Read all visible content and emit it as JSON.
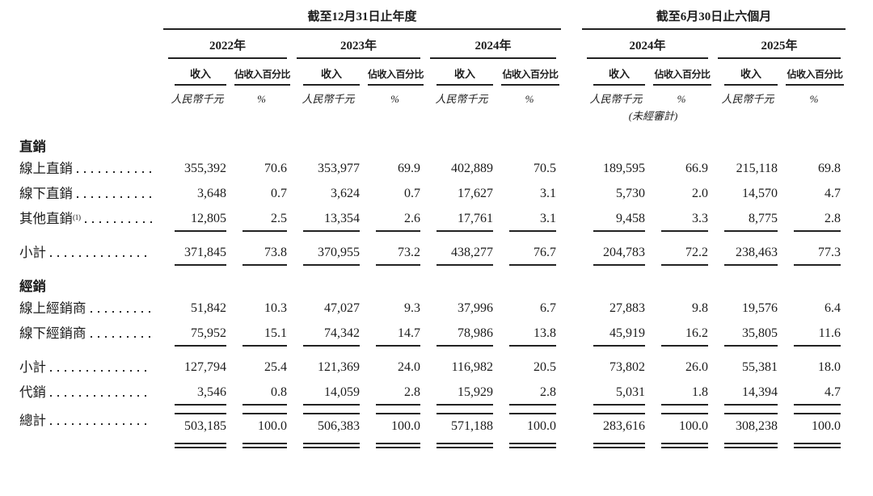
{
  "page": {
    "background": "#ffffff",
    "text_color": "#1c1c1c",
    "rule_color": "#222222"
  },
  "table": {
    "header": {
      "period_groups": [
        {
          "title": "截至12月31日止年度",
          "years": [
            {
              "label": "2022年"
            },
            {
              "label": "2023年"
            },
            {
              "label": "2024年"
            }
          ]
        },
        {
          "title": "截至6月30日止六個月",
          "years": [
            {
              "label": "2024年",
              "note": "(未經審計)"
            },
            {
              "label": "2025年"
            }
          ]
        }
      ],
      "revenue_col_label": "收入",
      "pct_col_label": "佔收入百分比",
      "revenue_unit": "人民幣千元",
      "pct_unit": "%",
      "unaudited_note": "(未經審計)"
    },
    "rows": [
      {
        "type": "section",
        "label": "直銷"
      },
      {
        "type": "data",
        "label": "線上直銷",
        "values": [
          "355,392",
          "70.6",
          "353,977",
          "69.9",
          "402,889",
          "70.5",
          "189,595",
          "66.9",
          "215,118",
          "69.8"
        ]
      },
      {
        "type": "data",
        "label": "線下直銷",
        "values": [
          "3,648",
          "0.7",
          "3,624",
          "0.7",
          "17,627",
          "3.1",
          "5,730",
          "2.0",
          "14,570",
          "4.7"
        ]
      },
      {
        "type": "data",
        "label": "其他直銷",
        "footnote": "(1)",
        "rule_below": true,
        "values": [
          "12,805",
          "2.5",
          "13,354",
          "2.6",
          "17,761",
          "3.1",
          "9,458",
          "3.3",
          "8,775",
          "2.8"
        ]
      },
      {
        "type": "subtotal",
        "label": "小計",
        "rule_below": true,
        "values": [
          "371,845",
          "73.8",
          "370,955",
          "73.2",
          "438,277",
          "76.7",
          "204,783",
          "72.2",
          "238,463",
          "77.3"
        ]
      },
      {
        "type": "section",
        "label": "經銷"
      },
      {
        "type": "data",
        "label": "線上經銷商",
        "values": [
          "51,842",
          "10.3",
          "47,027",
          "9.3",
          "37,996",
          "6.7",
          "27,883",
          "9.8",
          "19,576",
          "6.4"
        ]
      },
      {
        "type": "data",
        "label": "線下經銷商",
        "rule_below": true,
        "values": [
          "75,952",
          "15.1",
          "74,342",
          "14.7",
          "78,986",
          "13.8",
          "45,919",
          "16.2",
          "35,805",
          "11.6"
        ]
      },
      {
        "type": "subtotal",
        "label": "小計",
        "values": [
          "127,794",
          "25.4",
          "121,369",
          "24.0",
          "116,982",
          "20.5",
          "73,802",
          "26.0",
          "55,381",
          "18.0"
        ]
      },
      {
        "type": "subtotal",
        "label": "代銷",
        "rule_below": true,
        "values": [
          "3,546",
          "0.8",
          "14,059",
          "2.8",
          "15,929",
          "2.8",
          "5,031",
          "1.8",
          "14,394",
          "4.7"
        ]
      },
      {
        "type": "total",
        "label": "總計",
        "rule_above": true,
        "double_rule_below": true,
        "values": [
          "503,185",
          "100.0",
          "506,383",
          "100.0",
          "571,188",
          "100.0",
          "283,616",
          "100.0",
          "308,238",
          "100.0"
        ]
      }
    ]
  }
}
